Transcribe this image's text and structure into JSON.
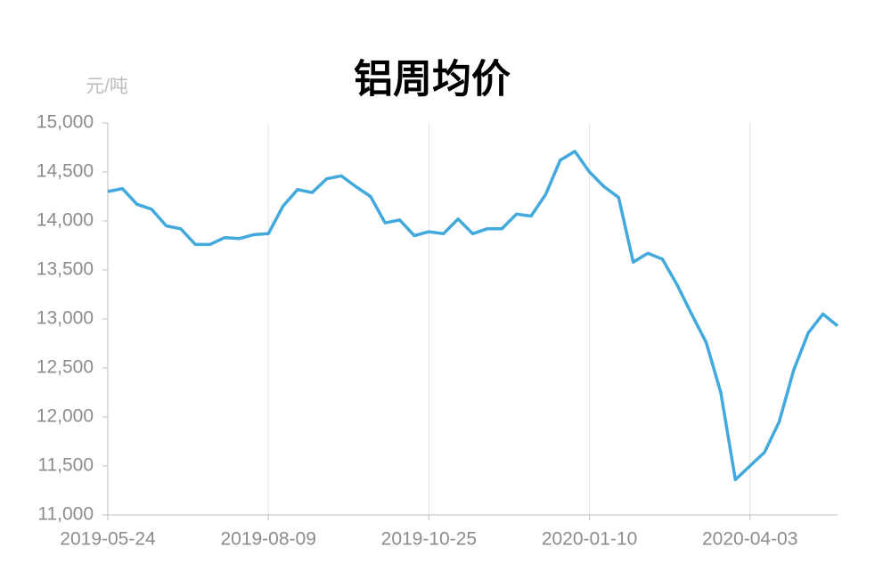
{
  "chart_data": {
    "type": "line",
    "title": "铝周均价",
    "y_axis_label": "元/吨",
    "categories": [
      "2019-05-24",
      null,
      null,
      null,
      null,
      null,
      null,
      null,
      null,
      null,
      null,
      "2019-08-09",
      null,
      null,
      null,
      null,
      null,
      null,
      null,
      null,
      null,
      null,
      "2019-10-25",
      null,
      null,
      null,
      null,
      null,
      null,
      null,
      null,
      null,
      null,
      "2020-01-10",
      null,
      null,
      null,
      null,
      null,
      null,
      null,
      null,
      null,
      null,
      "2020-04-03",
      null,
      null,
      null,
      null,
      null,
      null
    ],
    "series": [
      {
        "name": "铝周均价",
        "color": "#41a9dc",
        "values": [
          14300,
          14330,
          14170,
          14120,
          13950,
          13920,
          13760,
          13760,
          13830,
          13820,
          13860,
          13870,
          14150,
          14320,
          14290,
          14430,
          14460,
          14350,
          14250,
          13980,
          14010,
          13850,
          13890,
          13870,
          14020,
          13870,
          13920,
          13920,
          14070,
          14050,
          14270,
          14620,
          14710,
          14500,
          14350,
          14240,
          13580,
          13670,
          13610,
          13350,
          13050,
          12760,
          12250,
          11360,
          11500,
          11640,
          11950,
          12480,
          12860,
          13050,
          12930
        ]
      }
    ],
    "ylim": [
      11000,
      15000
    ],
    "yticks": [
      {
        "value": 11000,
        "label": "11,000"
      },
      {
        "value": 11500,
        "label": "11,500"
      },
      {
        "value": 12000,
        "label": "12,000"
      },
      {
        "value": 12500,
        "label": "12,500"
      },
      {
        "value": 13000,
        "label": "13,000"
      },
      {
        "value": 13500,
        "label": "13,500"
      },
      {
        "value": 14000,
        "label": "14,000"
      },
      {
        "value": 14500,
        "label": "14,500"
      },
      {
        "value": 15000,
        "label": "15,000"
      }
    ],
    "grid": "x"
  }
}
